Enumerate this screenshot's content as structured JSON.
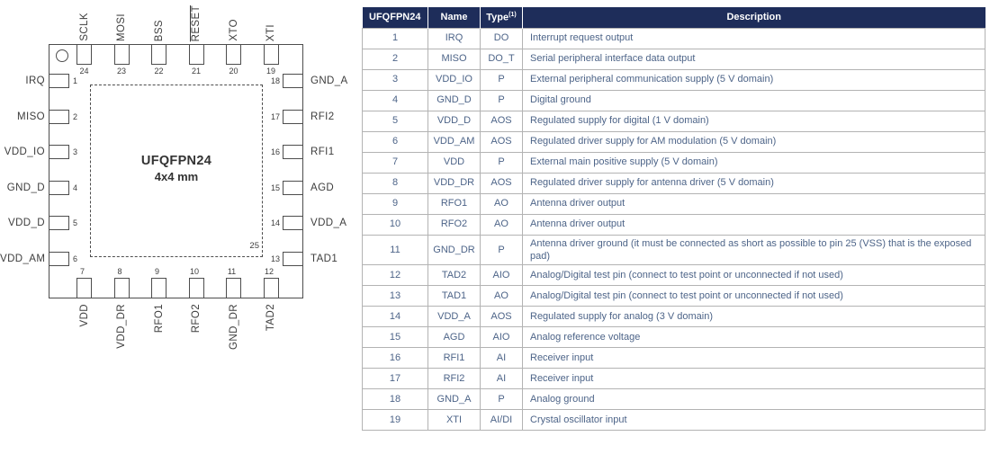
{
  "diagram": {
    "package": "UFQFPN24",
    "size": "4x4 mm",
    "exposed_pad_number": "25",
    "pins": {
      "top": [
        {
          "num": "24",
          "label": "SCLK"
        },
        {
          "num": "23",
          "label": "MOSI"
        },
        {
          "num": "22",
          "label": "BSS"
        },
        {
          "num": "21",
          "label": "RESET",
          "overline": true
        },
        {
          "num": "20",
          "label": "XTO"
        },
        {
          "num": "19",
          "label": "XTI"
        }
      ],
      "left": [
        {
          "num": "1",
          "label": "IRQ"
        },
        {
          "num": "2",
          "label": "MISO"
        },
        {
          "num": "3",
          "label": "VDD_IO"
        },
        {
          "num": "4",
          "label": "GND_D"
        },
        {
          "num": "5",
          "label": "VDD_D"
        },
        {
          "num": "6",
          "label": "VDD_AM"
        }
      ],
      "right": [
        {
          "num": "18",
          "label": "GND_A"
        },
        {
          "num": "17",
          "label": "RFI2"
        },
        {
          "num": "16",
          "label": "RFI1"
        },
        {
          "num": "15",
          "label": "AGD"
        },
        {
          "num": "14",
          "label": "VDD_A"
        },
        {
          "num": "13",
          "label": "TAD1"
        }
      ],
      "bottom": [
        {
          "num": "7",
          "label": "VDD"
        },
        {
          "num": "8",
          "label": "VDD_DR"
        },
        {
          "num": "9",
          "label": "RFO1"
        },
        {
          "num": "10",
          "label": "RFO2"
        },
        {
          "num": "11",
          "label": "GND_DR"
        },
        {
          "num": "12",
          "label": "TAD2"
        }
      ]
    }
  },
  "table": {
    "headers": [
      "UFQFPN24",
      "Name",
      "Type",
      "Description"
    ],
    "header_sup": "(1)",
    "rows": [
      [
        "1",
        "IRQ",
        "DO",
        "Interrupt request output"
      ],
      [
        "2",
        "MISO",
        "DO_T",
        "Serial peripheral interface data output"
      ],
      [
        "3",
        "VDD_IO",
        "P",
        "External peripheral communication supply (5 V domain)"
      ],
      [
        "4",
        "GND_D",
        "P",
        "Digital ground"
      ],
      [
        "5",
        "VDD_D",
        "AOS",
        "Regulated supply for digital (1 V domain)"
      ],
      [
        "6",
        "VDD_AM",
        "AOS",
        "Regulated driver supply for AM modulation (5 V domain)"
      ],
      [
        "7",
        "VDD",
        "P",
        "External main positive supply (5 V domain)"
      ],
      [
        "8",
        "VDD_DR",
        "AOS",
        "Regulated driver supply for antenna driver (5 V domain)"
      ],
      [
        "9",
        "RFO1",
        "AO",
        "Antenna driver output"
      ],
      [
        "10",
        "RFO2",
        "AO",
        "Antenna driver output"
      ],
      [
        "11",
        "GND_DR",
        "P",
        "Antenna driver ground (it must be connected as short as possible to pin 25 (VSS) that is the exposed pad)"
      ],
      [
        "12",
        "TAD2",
        "AIO",
        "Analog/Digital test pin (connect to test point or unconnected if not used)"
      ],
      [
        "13",
        "TAD1",
        "AO",
        "Analog/Digital test pin (connect to test point or unconnected if not used)"
      ],
      [
        "14",
        "VDD_A",
        "AOS",
        "Regulated supply for analog (3 V domain)"
      ],
      [
        "15",
        "AGD",
        "AIO",
        "Analog reference voltage"
      ],
      [
        "16",
        "RFI1",
        "AI",
        "Receiver input"
      ],
      [
        "17",
        "RFI2",
        "AI",
        "Receiver input"
      ],
      [
        "18",
        "GND_A",
        "P",
        "Analog ground"
      ],
      [
        "19",
        "XTI",
        "AI/DI",
        "Crystal oscillator input"
      ]
    ]
  },
  "colors": {
    "table_header_bg": "#1e2d5a",
    "table_text": "#4d6488",
    "diagram_stroke": "#4d4d4d",
    "row_border": "#b3b3b3"
  }
}
